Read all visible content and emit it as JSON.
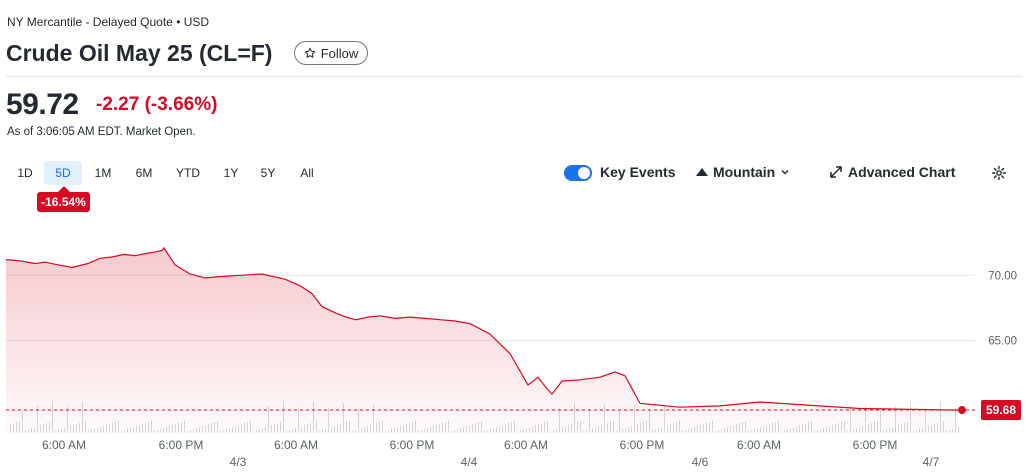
{
  "header": {
    "exchange": "NY Mercantile - Delayed Quote • USD",
    "title": "Crude Oil May 25 (CL=F)",
    "follow_label": "Follow"
  },
  "quote": {
    "price": "59.72",
    "change": "-2.27 (-3.66%)",
    "as_of": "As of 3:06:05 AM EDT. Market Open."
  },
  "ranges": [
    "1D",
    "5D",
    "1M",
    "6M",
    "YTD",
    "1Y",
    "5Y",
    "All"
  ],
  "active_range": "5D",
  "performance_badge": "-16.54%",
  "controls": {
    "key_events_label": "Key Events",
    "key_events_on": true,
    "chart_type_label": "Mountain",
    "advanced_chart_label": "Advanced Chart",
    "icons": [
      "star-icon",
      "caret-down-icon",
      "expand-arrows-icon",
      "gear-icon",
      "mountain-icon"
    ]
  },
  "colors": {
    "down": "#d60a22",
    "accent": "#0f69ff",
    "toggle": "#1a73e8"
  },
  "chart_data": {
    "type": "area",
    "y_ticks": [
      "70.00",
      "65.00"
    ],
    "y_tick_values": [
      70,
      65
    ],
    "ylim": [
      58.0,
      75.0
    ],
    "last_price_label": "59.68",
    "last_price": 59.68,
    "x_tick_labels": [
      "6:00 AM",
      "6:00 PM",
      "6:00 AM",
      "6:00 PM",
      "6:00 AM",
      "6:00 PM",
      "6:00 AM",
      "6:00 PM"
    ],
    "date_labels": [
      "4/3",
      "4/4",
      "4/6",
      "4/7"
    ],
    "grid": true,
    "series": [
      {
        "values": [
          71.2,
          71.1,
          70.9,
          71.0,
          70.8,
          70.6,
          70.9,
          71.3,
          71.4,
          71.6,
          71.5,
          71.7,
          71.8,
          71.9,
          72.1,
          70.8,
          70.1,
          69.8,
          69.9,
          70.0,
          70.1,
          69.7,
          69.2,
          68.6,
          67.6,
          67.1,
          66.8,
          66.6,
          66.8,
          66.9,
          66.7,
          66.8,
          66.7,
          66.6,
          66.5,
          66.3,
          65.5,
          64.0,
          61.6,
          62.2,
          61.5,
          60.9,
          61.9,
          62.0,
          62.2,
          62.6,
          62.3,
          60.2,
          59.9,
          60.0,
          60.3,
          60.1,
          59.8,
          59.68
        ]
      }
    ]
  }
}
